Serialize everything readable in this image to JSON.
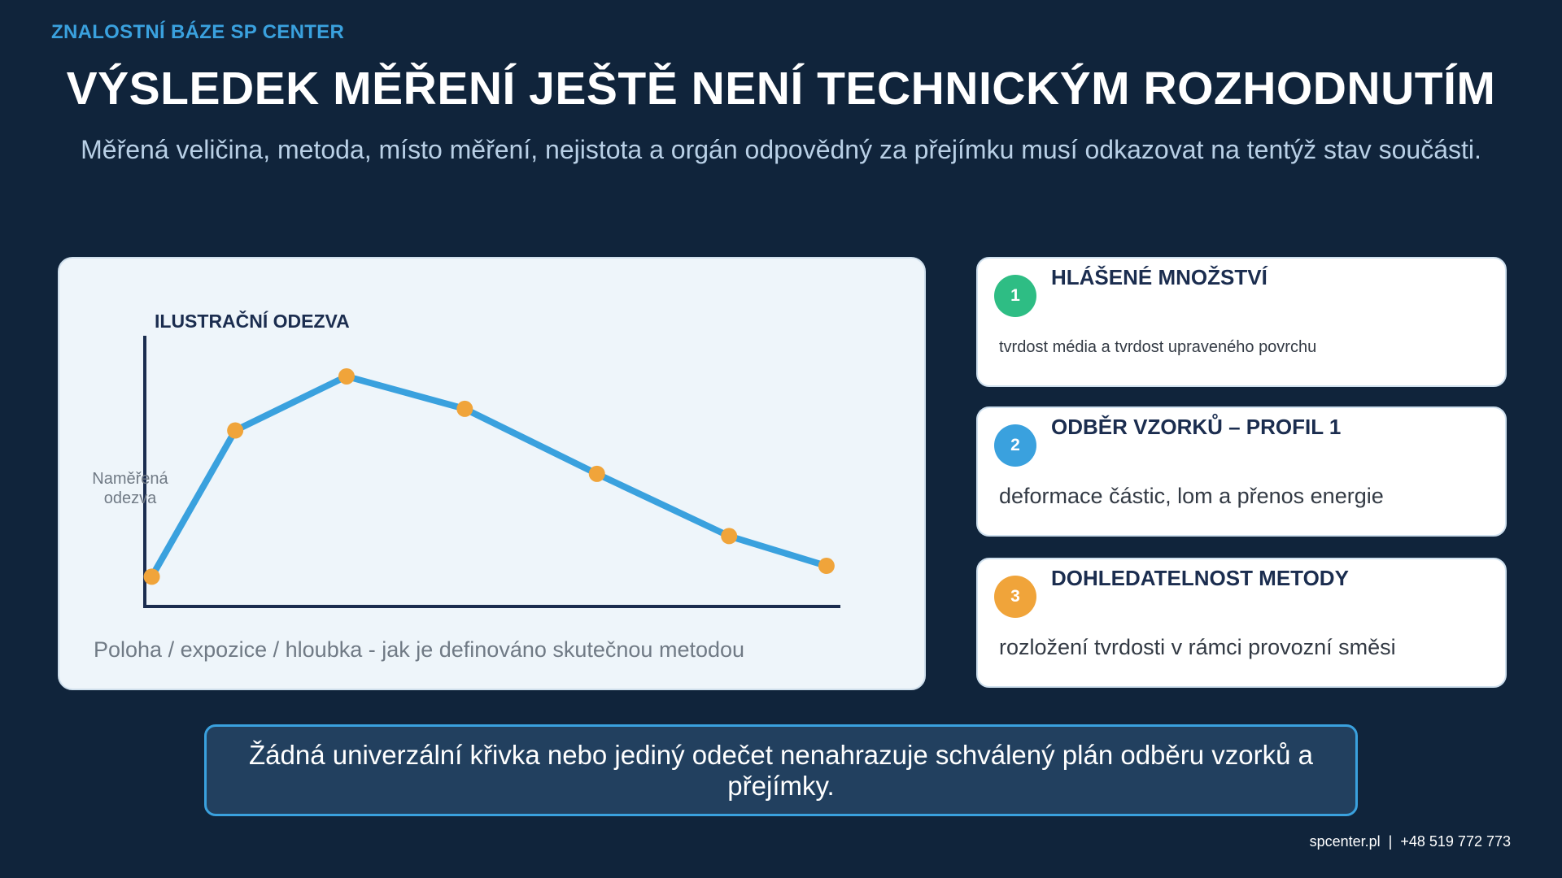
{
  "header": {
    "kicker": "ZNALOSTNÍ BÁZE SP CENTER",
    "title": "VÝSLEDEK MĚŘENÍ JEŠTĚ NENÍ TECHNICKÝM ROZHODNUTÍM",
    "subtitle": "Měřená veličina, metoda, místo měření, nejistota a orgán odpovědný za přejímku musí odkazovat na tentýž stav součásti."
  },
  "chart_data": {
    "type": "line",
    "title": "ILUSTRAČNÍ ODEZVA",
    "ylabel_lines": [
      "Naměřená",
      "odezva"
    ],
    "xlabel": "Poloha / expozice / hloubka - jak je definováno skutečnou metodou",
    "series": [
      {
        "values": [
          0.11,
          0.65,
          0.85,
          0.73,
          0.49,
          0.26,
          0.15
        ]
      }
    ],
    "x": [
      0.01,
      0.13,
      0.29,
      0.46,
      0.65,
      0.84,
      0.98
    ],
    "xlim": [
      0,
      1
    ],
    "ylim": [
      0,
      1
    ],
    "grid": false,
    "colors": {
      "line": "#3aa1de",
      "marker": "#f0a43a",
      "axis": "#1b2d4f"
    }
  },
  "cards": [
    {
      "number": "1",
      "title": "HLÁŠENÉ MNOŽSTVÍ",
      "text": "tvrdost média a tvrdost upraveného povrchu",
      "color": "#2ebd84"
    },
    {
      "number": "2",
      "title": "ODBĚR VZORKŮ – PROFIL 1",
      "text": "deformace částic, lom a přenos energie",
      "color": "#3aa1de"
    },
    {
      "number": "3",
      "title": "DOHLEDATELNOST METODY",
      "text": "rozložení tvrdosti v rámci provozní směsi",
      "color": "#f0a43a"
    }
  ],
  "banner": {
    "text": "Žádná univerzální křivka nebo jediný odečet nenahrazuje schválený plán odběru vzorků a přejímky."
  },
  "footer": {
    "text": "spcenter.pl  |  +48 519 772 773"
  }
}
